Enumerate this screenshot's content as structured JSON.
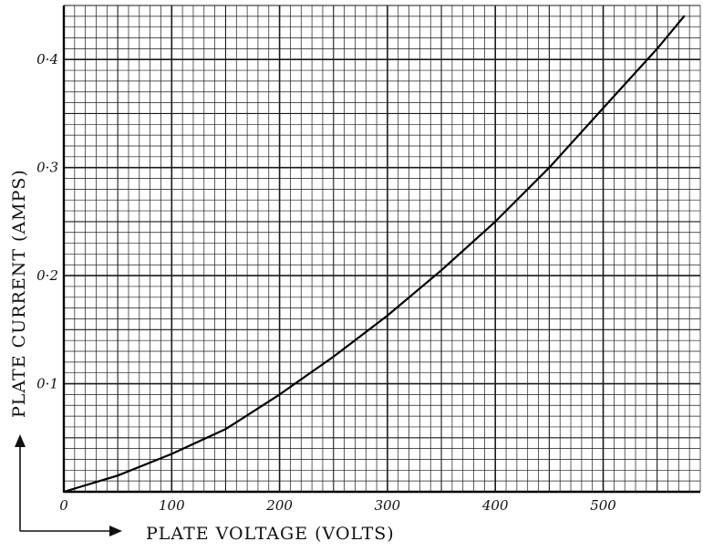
{
  "chart_data": {
    "type": "line",
    "title": "",
    "xlabel": "PLATE VOLTAGE (VOLTS)",
    "ylabel": "PLATE CURRENT (AMPS)",
    "xlim": [
      0,
      590
    ],
    "ylim": [
      0,
      0.45
    ],
    "x_ticks": [
      0,
      100,
      200,
      300,
      400,
      500
    ],
    "x_tick_labels": [
      "0",
      "100",
      "200",
      "300",
      "400",
      "500"
    ],
    "y_ticks": [
      0.1,
      0.2,
      0.3,
      0.4
    ],
    "y_tick_labels": [
      "0·1",
      "0·2",
      "0·3",
      "0·4"
    ],
    "grid": true,
    "series": [
      {
        "x": [
          0,
          50,
          100,
          150,
          200,
          250,
          300,
          350,
          400,
          450,
          500,
          550,
          575
        ],
        "y": [
          0,
          0.015,
          0.035,
          0.058,
          0.09,
          0.125,
          0.163,
          0.205,
          0.25,
          0.3,
          0.355,
          0.41,
          0.44
        ]
      }
    ]
  }
}
